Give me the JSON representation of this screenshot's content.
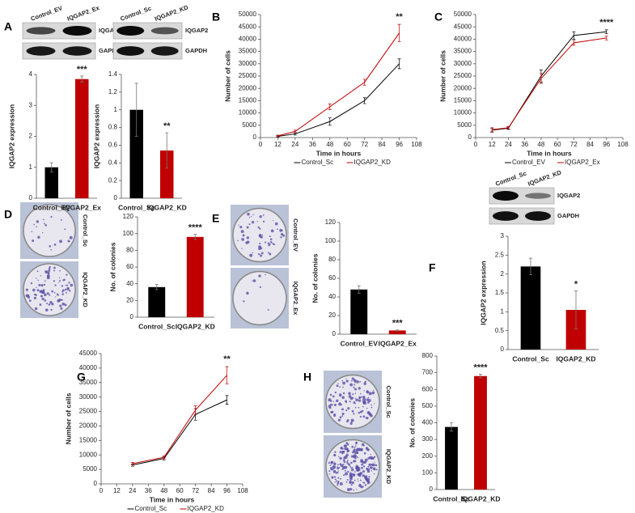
{
  "panel_labels": [
    "A",
    "B",
    "C",
    "D",
    "E",
    "F",
    "G",
    "H"
  ],
  "blots": [
    {
      "lanes": [
        "Control_EV",
        "IQGAP2_Ex"
      ],
      "rows": [
        "IQGAP2",
        "GAPDH"
      ]
    },
    {
      "lanes": [
        "Control_Sc",
        "IQGAP2_KD"
      ],
      "rows": [
        "IQGAP2",
        "GAPDH"
      ]
    },
    {
      "lanes": [
        "Control_Sc",
        "IQGAP2_KD"
      ],
      "rows": [
        "IQGAP2",
        "GAPDH"
      ]
    }
  ],
  "plates": [
    {
      "labels": [
        "Control_Sc",
        "IQGAP2_KD"
      ]
    },
    {
      "labels": [
        "Control_EV",
        "IQGAP2_Ex"
      ]
    },
    {
      "labels": [
        "Control_Sc",
        "IQGAP2_KD"
      ]
    }
  ],
  "chart_data": [
    {
      "type": "bar",
      "ylabel": "IQGAP2  expression",
      "categories": [
        "Control_EV",
        "IQGAP2_Ex"
      ],
      "values": [
        1.0,
        3.85
      ],
      "errors": [
        0.15,
        0.1
      ],
      "colors": [
        "#000000",
        "#c00000"
      ],
      "ylim": [
        0,
        4
      ],
      "yticks": [
        0,
        1,
        2,
        3,
        4
      ],
      "annotation": "***"
    },
    {
      "type": "bar",
      "ylabel": "IQGAP2  expression",
      "categories": [
        "Control_Sc",
        "IQGAP2_KD"
      ],
      "values": [
        1.0,
        0.54
      ],
      "errors": [
        0.3,
        0.2
      ],
      "colors": [
        "#000000",
        "#c00000"
      ],
      "ylim": [
        0,
        1.4
      ],
      "yticks": [
        0,
        0.2,
        0.4,
        0.6,
        0.8,
        1,
        1.2,
        1.4
      ],
      "annotation": "**"
    },
    {
      "type": "line",
      "xlabel": "Time in hours",
      "ylabel": "Number of cells",
      "x": [
        12,
        24,
        48,
        72,
        96
      ],
      "series": [
        {
          "name": "Control_Sc",
          "color": "#000000",
          "values": [
            500,
            1500,
            6500,
            15000,
            30000
          ],
          "errors": [
            300,
            500,
            1500,
            1200,
            2000
          ]
        },
        {
          "name": "IQGAP2_KD",
          "color": "#c00000",
          "values": [
            700,
            2500,
            12500,
            22500,
            42500
          ],
          "errors": [
            300,
            500,
            1200,
            1200,
            3500
          ]
        }
      ],
      "xlim": [
        0,
        108
      ],
      "xticks": [
        0,
        12,
        24,
        36,
        48,
        60,
        72,
        84,
        96,
        108
      ],
      "ylim": [
        0,
        50000
      ],
      "yticks": [
        0,
        5000,
        10000,
        15000,
        20000,
        25000,
        30000,
        35000,
        40000,
        45000,
        50000
      ],
      "annotation": "**"
    },
    {
      "type": "line",
      "xlabel": "Time in hours",
      "ylabel": "Number of cells",
      "x": [
        12,
        24,
        48,
        72,
        96
      ],
      "series": [
        {
          "name": "Control_EV",
          "color": "#000000",
          "values": [
            3000,
            3800,
            25000,
            41500,
            43000
          ],
          "errors": [
            800,
            500,
            2500,
            1500,
            800
          ]
        },
        {
          "name": "IQGAP2_Ex",
          "color": "#c00000",
          "values": [
            3200,
            4000,
            24000,
            38500,
            40500
          ],
          "errors": [
            800,
            500,
            2000,
            1000,
            800
          ]
        }
      ],
      "xlim": [
        0,
        108
      ],
      "xticks": [
        0,
        12,
        24,
        36,
        48,
        60,
        72,
        84,
        96,
        108
      ],
      "ylim": [
        0,
        50000
      ],
      "yticks": [
        0,
        5000,
        10000,
        15000,
        20000,
        25000,
        30000,
        35000,
        40000,
        45000,
        50000
      ],
      "annotation": "****"
    },
    {
      "type": "bar",
      "ylabel": "No. of colonies",
      "categories": [
        "Control_Sc",
        "IQGAP2_KD"
      ],
      "values": [
        36,
        96
      ],
      "errors": [
        3,
        3
      ],
      "colors": [
        "#000000",
        "#c00000"
      ],
      "ylim": [
        0,
        120
      ],
      "yticks": [
        0,
        20,
        40,
        60,
        80,
        100,
        120
      ],
      "annotation": "****"
    },
    {
      "type": "bar",
      "ylabel": "No. of colonies",
      "categories": [
        "Control_EV",
        "IQGAP2_Ex"
      ],
      "values": [
        48,
        4
      ],
      "errors": [
        4,
        0.5
      ],
      "colors": [
        "#000000",
        "#c00000"
      ],
      "ylim": [
        0,
        120
      ],
      "yticks": [
        0,
        20,
        40,
        60,
        80,
        100,
        120
      ],
      "annotation": "***"
    },
    {
      "type": "bar",
      "ylabel": "IQGAP2 expression",
      "categories": [
        "Control_Sc",
        "IQGAP2_KD"
      ],
      "values": [
        2.2,
        1.05
      ],
      "errors": [
        0.22,
        0.5
      ],
      "colors": [
        "#000000",
        "#c00000"
      ],
      "ylim": [
        0,
        3
      ],
      "yticks": [
        0,
        0.5,
        1,
        1.5,
        2,
        2.5,
        3
      ],
      "annotation": "*"
    },
    {
      "type": "line",
      "xlabel": "Time in hours",
      "ylabel": "Number of cells",
      "x": [
        24,
        48,
        72,
        96
      ],
      "series": [
        {
          "name": "Control_Sc",
          "color": "#000000",
          "values": [
            6500,
            8800,
            24000,
            29000
          ],
          "errors": [
            400,
            500,
            2000,
            1500
          ]
        },
        {
          "name": "IQGAP2_KD",
          "color": "#c00000",
          "values": [
            7000,
            9200,
            25500,
            37500
          ],
          "errors": [
            400,
            500,
            1500,
            3000
          ]
        }
      ],
      "xlim": [
        0,
        108
      ],
      "xticks": [
        0,
        12,
        24,
        36,
        48,
        60,
        72,
        84,
        96,
        108
      ],
      "ylim": [
        0,
        45000
      ],
      "yticks": [
        0,
        5000,
        10000,
        15000,
        20000,
        25000,
        30000,
        35000,
        40000,
        45000
      ],
      "annotation": "**"
    },
    {
      "type": "bar",
      "ylabel": "No. of colonies",
      "categories": [
        "Control_Sc",
        "IQGAP2_KD"
      ],
      "values": [
        375,
        680
      ],
      "errors": [
        25,
        10
      ],
      "colors": [
        "#000000",
        "#c00000"
      ],
      "ylim": [
        0,
        800
      ],
      "yticks": [
        0,
        100,
        200,
        300,
        400,
        500,
        600,
        700,
        800
      ],
      "annotation": "****"
    }
  ]
}
